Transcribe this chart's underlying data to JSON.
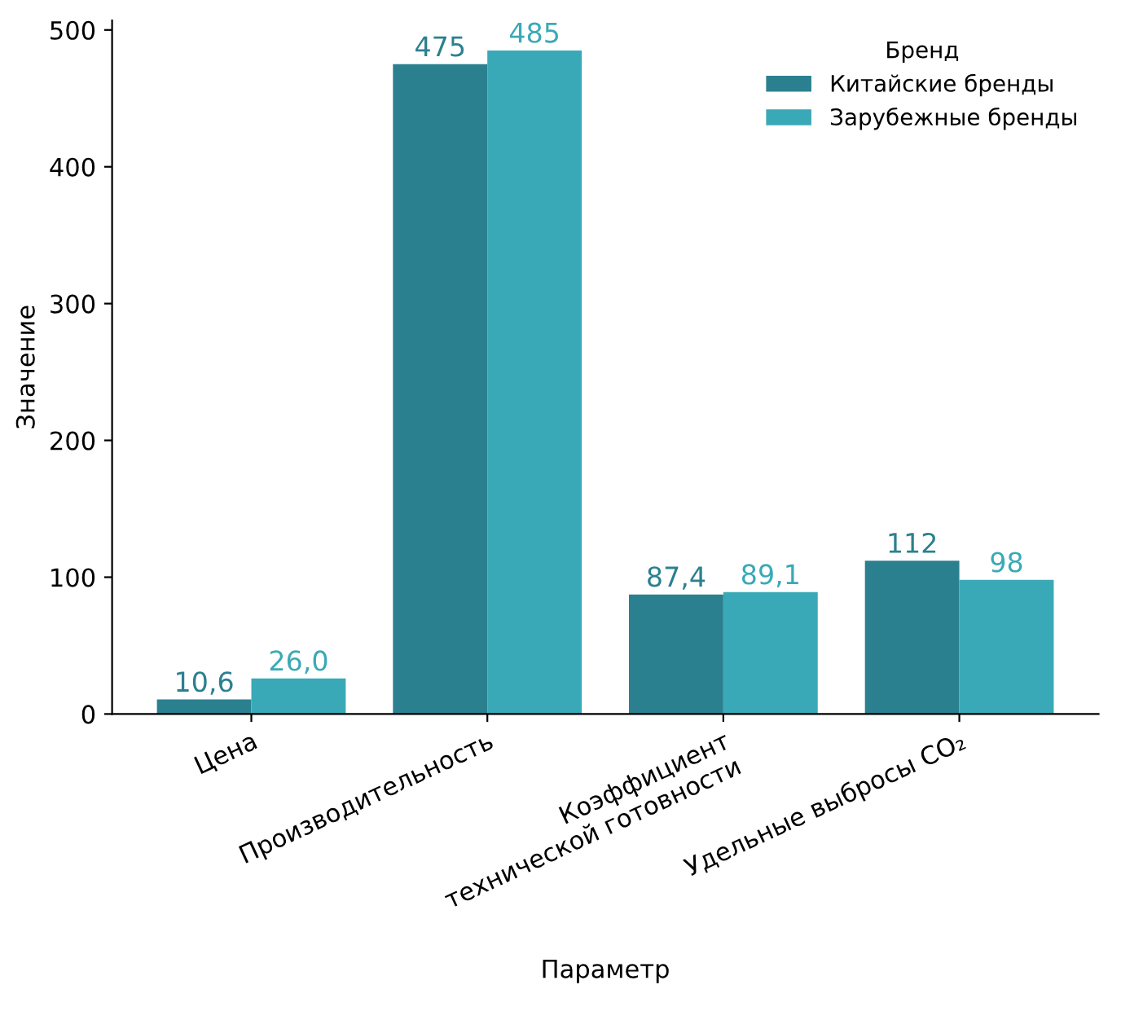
{
  "chart_data": {
    "type": "bar",
    "xlabel": "Параметр",
    "ylabel": "Значение",
    "legend_title": "Бренд",
    "categories": [
      "Цена",
      "Производительность",
      "Коэффициент\nтехнической готовности",
      "Удельные выбросы CO₂"
    ],
    "series": [
      {
        "name": "Китайские бренды",
        "color": "#2b8090",
        "values": [
          10.6,
          475,
          87.4,
          112
        ],
        "value_labels": [
          "10,6",
          "475",
          "87,4",
          "112"
        ]
      },
      {
        "name": "Зарубежные бренды",
        "color": "#3aa9b7",
        "values": [
          26.0,
          485,
          89.1,
          98
        ],
        "value_labels": [
          "26,0",
          "485",
          "89,1",
          "98"
        ]
      }
    ],
    "ylim": [
      0,
      507
    ],
    "yticks": [
      0,
      100,
      200,
      300,
      400,
      500
    ],
    "grid": false,
    "legend": "top right"
  }
}
